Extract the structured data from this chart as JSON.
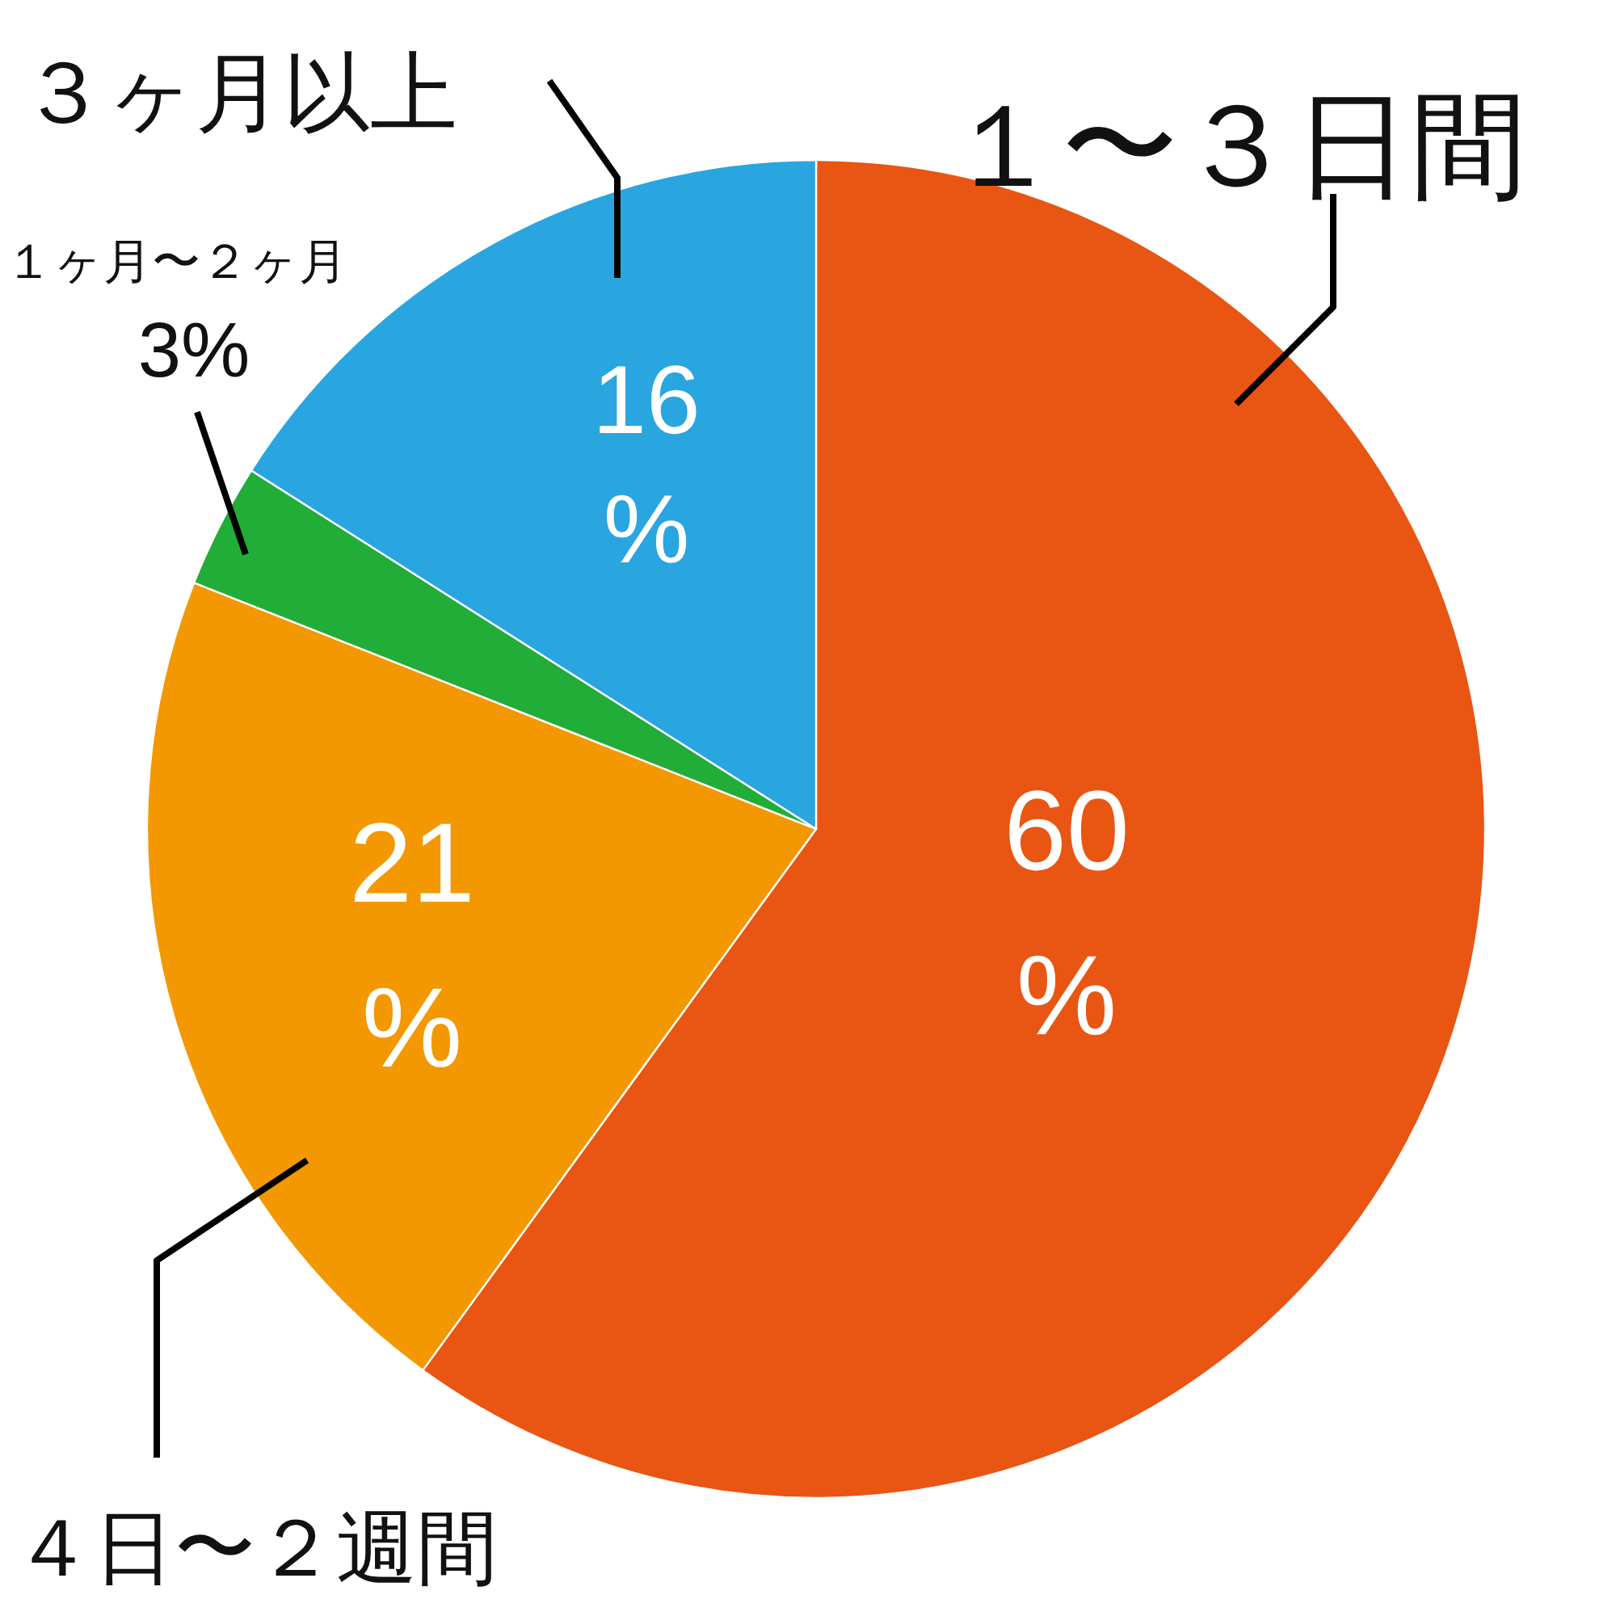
{
  "chart_data": {
    "type": "pie",
    "categories": [
      "１〜３日間",
      "４日〜２週間",
      "１ヶ月〜２ヶ月",
      "３ヶ月以上"
    ],
    "values": [
      60,
      21,
      3,
      16
    ],
    "colors": [
      "#e95513",
      "#f39800",
      "#22ac38",
      "#29a5e0"
    ],
    "value_labels": [
      "60%",
      "21%",
      "3%",
      "16%"
    ]
  }
}
